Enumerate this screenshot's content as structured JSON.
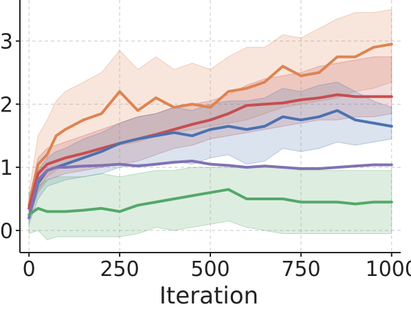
{
  "chart_data": {
    "type": "line",
    "title": "",
    "xlabel": "Iteration",
    "ylabel": "",
    "xlim": [
      -25,
      1025
    ],
    "ylim": [
      -0.35,
      3.65
    ],
    "xticks": [
      0,
      250,
      500,
      750,
      1000
    ],
    "xtick_labels": [
      "0",
      "250",
      "500",
      "750",
      "1000"
    ],
    "yticks": [
      0,
      1,
      2,
      3
    ],
    "ytick_labels": [
      "0",
      "1",
      "2",
      "3"
    ],
    "grid": true,
    "legend": "none",
    "x": [
      0,
      25,
      50,
      75,
      100,
      150,
      200,
      250,
      300,
      350,
      400,
      450,
      500,
      550,
      600,
      650,
      700,
      750,
      800,
      850,
      900,
      950,
      1000
    ],
    "series": [
      {
        "color": "#dd8452",
        "values": [
          0.4,
          1.05,
          1.2,
          1.5,
          1.6,
          1.75,
          1.85,
          2.2,
          1.9,
          2.1,
          1.95,
          2.0,
          1.95,
          2.2,
          2.25,
          2.35,
          2.6,
          2.45,
          2.5,
          2.75,
          2.75,
          2.9,
          2.95
        ],
        "lower": [
          0.3,
          0.65,
          0.85,
          0.95,
          1.05,
          1.15,
          1.25,
          1.35,
          1.4,
          1.5,
          1.55,
          1.6,
          1.65,
          1.7,
          1.75,
          1.85,
          1.95,
          2.0,
          2.05,
          2.1,
          2.2,
          2.25,
          2.35
        ],
        "upper": [
          0.6,
          1.5,
          1.75,
          2.05,
          2.2,
          2.35,
          2.5,
          2.85,
          2.55,
          2.75,
          2.55,
          2.65,
          2.55,
          2.75,
          2.9,
          2.9,
          3.1,
          3.05,
          3.2,
          3.35,
          3.45,
          3.45,
          3.5
        ]
      },
      {
        "color": "#c44e52",
        "values": [
          0.35,
          0.9,
          1.05,
          1.1,
          1.15,
          1.22,
          1.3,
          1.38,
          1.45,
          1.52,
          1.6,
          1.68,
          1.75,
          1.85,
          1.98,
          2.0,
          2.02,
          2.07,
          2.1,
          2.15,
          2.12,
          2.12,
          2.12
        ],
        "lower": [
          0.2,
          0.6,
          0.8,
          0.85,
          0.9,
          0.95,
          1.0,
          1.05,
          1.1,
          1.2,
          1.3,
          1.35,
          1.45,
          1.5,
          1.55,
          1.6,
          1.65,
          1.7,
          1.75,
          1.75,
          1.8,
          1.8,
          1.85
        ],
        "upper": [
          0.5,
          1.15,
          1.3,
          1.35,
          1.4,
          1.5,
          1.6,
          1.7,
          1.8,
          1.85,
          1.95,
          2.0,
          2.05,
          2.15,
          2.3,
          2.4,
          2.45,
          2.5,
          2.6,
          2.65,
          2.7,
          2.75,
          2.75
        ]
      },
      {
        "color": "#4c72b0",
        "values": [
          0.2,
          0.75,
          0.95,
          1.0,
          1.05,
          1.15,
          1.25,
          1.38,
          1.45,
          1.5,
          1.55,
          1.5,
          1.6,
          1.65,
          1.6,
          1.65,
          1.8,
          1.75,
          1.8,
          1.9,
          1.75,
          1.7,
          1.65
        ],
        "lower": [
          0.1,
          0.5,
          0.7,
          0.75,
          0.8,
          0.85,
          0.9,
          1.0,
          1.05,
          1.05,
          1.1,
          1.05,
          1.15,
          1.2,
          1.05,
          1.1,
          1.3,
          1.25,
          1.3,
          1.4,
          1.35,
          1.4,
          1.45
        ],
        "upper": [
          0.3,
          0.95,
          1.15,
          1.25,
          1.3,
          1.45,
          1.55,
          1.7,
          1.8,
          1.85,
          1.95,
          1.9,
          2.0,
          2.05,
          2.05,
          2.1,
          2.25,
          2.2,
          2.3,
          2.35,
          2.2,
          2.05,
          1.95
        ]
      },
      {
        "color": "#8172b3",
        "values": [
          0.2,
          0.8,
          0.95,
          1.0,
          1.0,
          1.02,
          1.03,
          1.05,
          1.02,
          1.05,
          1.08,
          1.1,
          1.05,
          1.03,
          1.0,
          1.02,
          1.0,
          0.98,
          0.98,
          1.0,
          1.02,
          1.04,
          1.04
        ],
        "lower": [],
        "upper": []
      },
      {
        "color": "#55a868",
        "values": [
          0.25,
          0.35,
          0.3,
          0.3,
          0.3,
          0.32,
          0.35,
          0.3,
          0.4,
          0.45,
          0.5,
          0.55,
          0.6,
          0.65,
          0.5,
          0.5,
          0.5,
          0.45,
          0.45,
          0.45,
          0.42,
          0.45,
          0.45
        ],
        "lower": [
          -0.05,
          0.0,
          -0.15,
          -0.1,
          -0.1,
          -0.1,
          -0.1,
          -0.1,
          -0.05,
          0.05,
          0.0,
          0.05,
          0.1,
          0.15,
          0.05,
          0.0,
          -0.05,
          -0.05,
          -0.05,
          -0.05,
          -0.05,
          -0.05,
          -0.05
        ],
        "upper": [
          0.6,
          0.7,
          0.8,
          0.85,
          0.85,
          0.85,
          0.9,
          0.85,
          0.9,
          0.95,
          0.95,
          1.0,
          1.0,
          1.0,
          1.0,
          1.0,
          1.0,
          0.95,
          0.95,
          0.95,
          0.95,
          0.95,
          0.95
        ]
      }
    ]
  }
}
